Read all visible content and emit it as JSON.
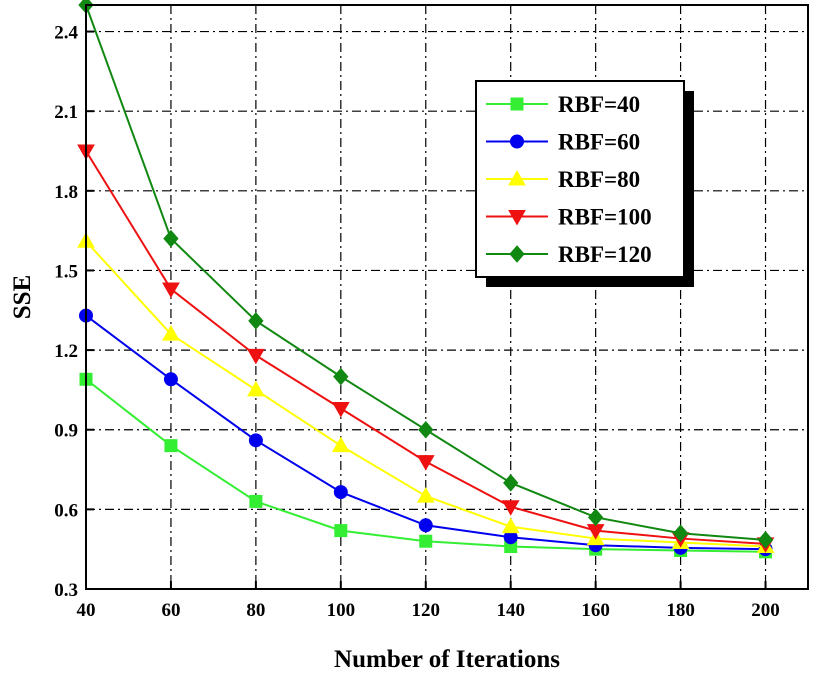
{
  "chart_data": {
    "type": "line",
    "title": "",
    "xlabel": "Number of Iterations",
    "ylabel": "SSE",
    "x": [
      40,
      60,
      80,
      100,
      120,
      140,
      160,
      180,
      200
    ],
    "xlim": [
      40,
      210
    ],
    "ylim": [
      0.3,
      2.5
    ],
    "x_ticks": [
      "40",
      "60",
      "80",
      "100",
      "120",
      "140",
      "160",
      "180",
      "200"
    ],
    "y_ticks": [
      "0.3",
      "0.6",
      "0.9",
      "1.2",
      "1.5",
      "1.8",
      "2.1",
      "2.4"
    ],
    "grid": true,
    "legend_position": "top-right",
    "series": [
      {
        "name": "RBF=40",
        "color": "#33ee33",
        "marker": "square",
        "values": [
          1.09,
          0.84,
          0.63,
          0.52,
          0.48,
          0.46,
          0.45,
          0.445,
          0.44
        ]
      },
      {
        "name": "RBF=60",
        "color": "#0000ee",
        "marker": "circle",
        "values": [
          1.33,
          1.09,
          0.86,
          0.665,
          0.54,
          0.495,
          0.465,
          0.455,
          0.45
        ]
      },
      {
        "name": "RBF=80",
        "color": "#ffff00",
        "marker": "triangle-up",
        "values": [
          1.61,
          1.26,
          1.05,
          0.84,
          0.65,
          0.535,
          0.49,
          0.475,
          0.46
        ]
      },
      {
        "name": "RBF=100",
        "color": "#ee1111",
        "marker": "triangle-down",
        "values": [
          1.95,
          1.43,
          1.18,
          0.98,
          0.78,
          0.61,
          0.52,
          0.49,
          0.47
        ]
      },
      {
        "name": "RBF=120",
        "color": "#118811",
        "marker": "diamond",
        "values": [
          2.5,
          1.62,
          1.31,
          1.1,
          0.9,
          0.7,
          0.57,
          0.51,
          0.485
        ]
      }
    ]
  }
}
